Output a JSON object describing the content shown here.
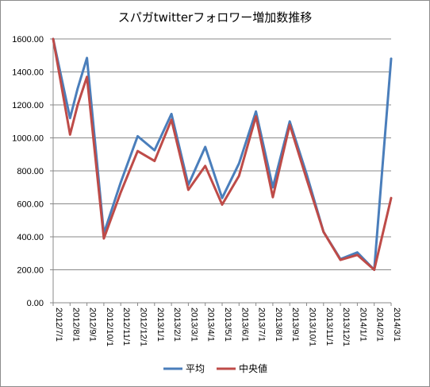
{
  "chart_data": {
    "type": "line",
    "title": "スパガtwitterフォロワー増加数推移",
    "xlabel": "",
    "ylabel": "",
    "categories": [
      "2012/7/1",
      "2012/8/1",
      "2012/9/1",
      "2012/10/1",
      "2012/11/1",
      "2012/12/1",
      "2013/1/1",
      "2013/2/1",
      "2013/3/1",
      "2013/4/1",
      "2013/5/1",
      "2013/6/1",
      "2013/7/1",
      "2013/8/1",
      "2013/9/1",
      "2013/10/1",
      "2013/11/1",
      "2013/12/1",
      "2014/1/1",
      "2014/2/1",
      "2014/3/1"
    ],
    "x": [
      "2012-07-01",
      "2012-08-01",
      "2012-08-15",
      "2012-09-01",
      "2012-10-01",
      "2012-11-01",
      "2012-12-01",
      "2013-01-01",
      "2013-02-01",
      "2013-03-01",
      "2013-04-01",
      "2013-05-01",
      "2013-06-01",
      "2013-07-01",
      "2013-08-01",
      "2013-09-01",
      "2013-10-01",
      "2013-11-01",
      "2013-12-01",
      "2014-01-01",
      "2014-02-01",
      "2014-03-01"
    ],
    "series": [
      {
        "name": "平均",
        "color": "#4a7ebb",
        "values": [
          1600,
          1120,
          1300,
          1485,
          420,
          730,
          1010,
          925,
          1145,
          715,
          945,
          635,
          845,
          1160,
          700,
          1100,
          780,
          430,
          265,
          305,
          200,
          1480
        ]
      },
      {
        "name": "中央値",
        "color": "#be4b48",
        "values": [
          1600,
          1020,
          1200,
          1370,
          390,
          670,
          920,
          860,
          1110,
          685,
          830,
          595,
          770,
          1130,
          640,
          1080,
          750,
          430,
          260,
          290,
          200,
          635
        ]
      }
    ],
    "yticks": [
      "0.00",
      "200.00",
      "400.00",
      "600.00",
      "800.00",
      "1000.00",
      "1200.00",
      "1400.00",
      "1600.00"
    ],
    "ylim": [
      0,
      1600
    ],
    "grid": true,
    "legend_position": "bottom"
  }
}
